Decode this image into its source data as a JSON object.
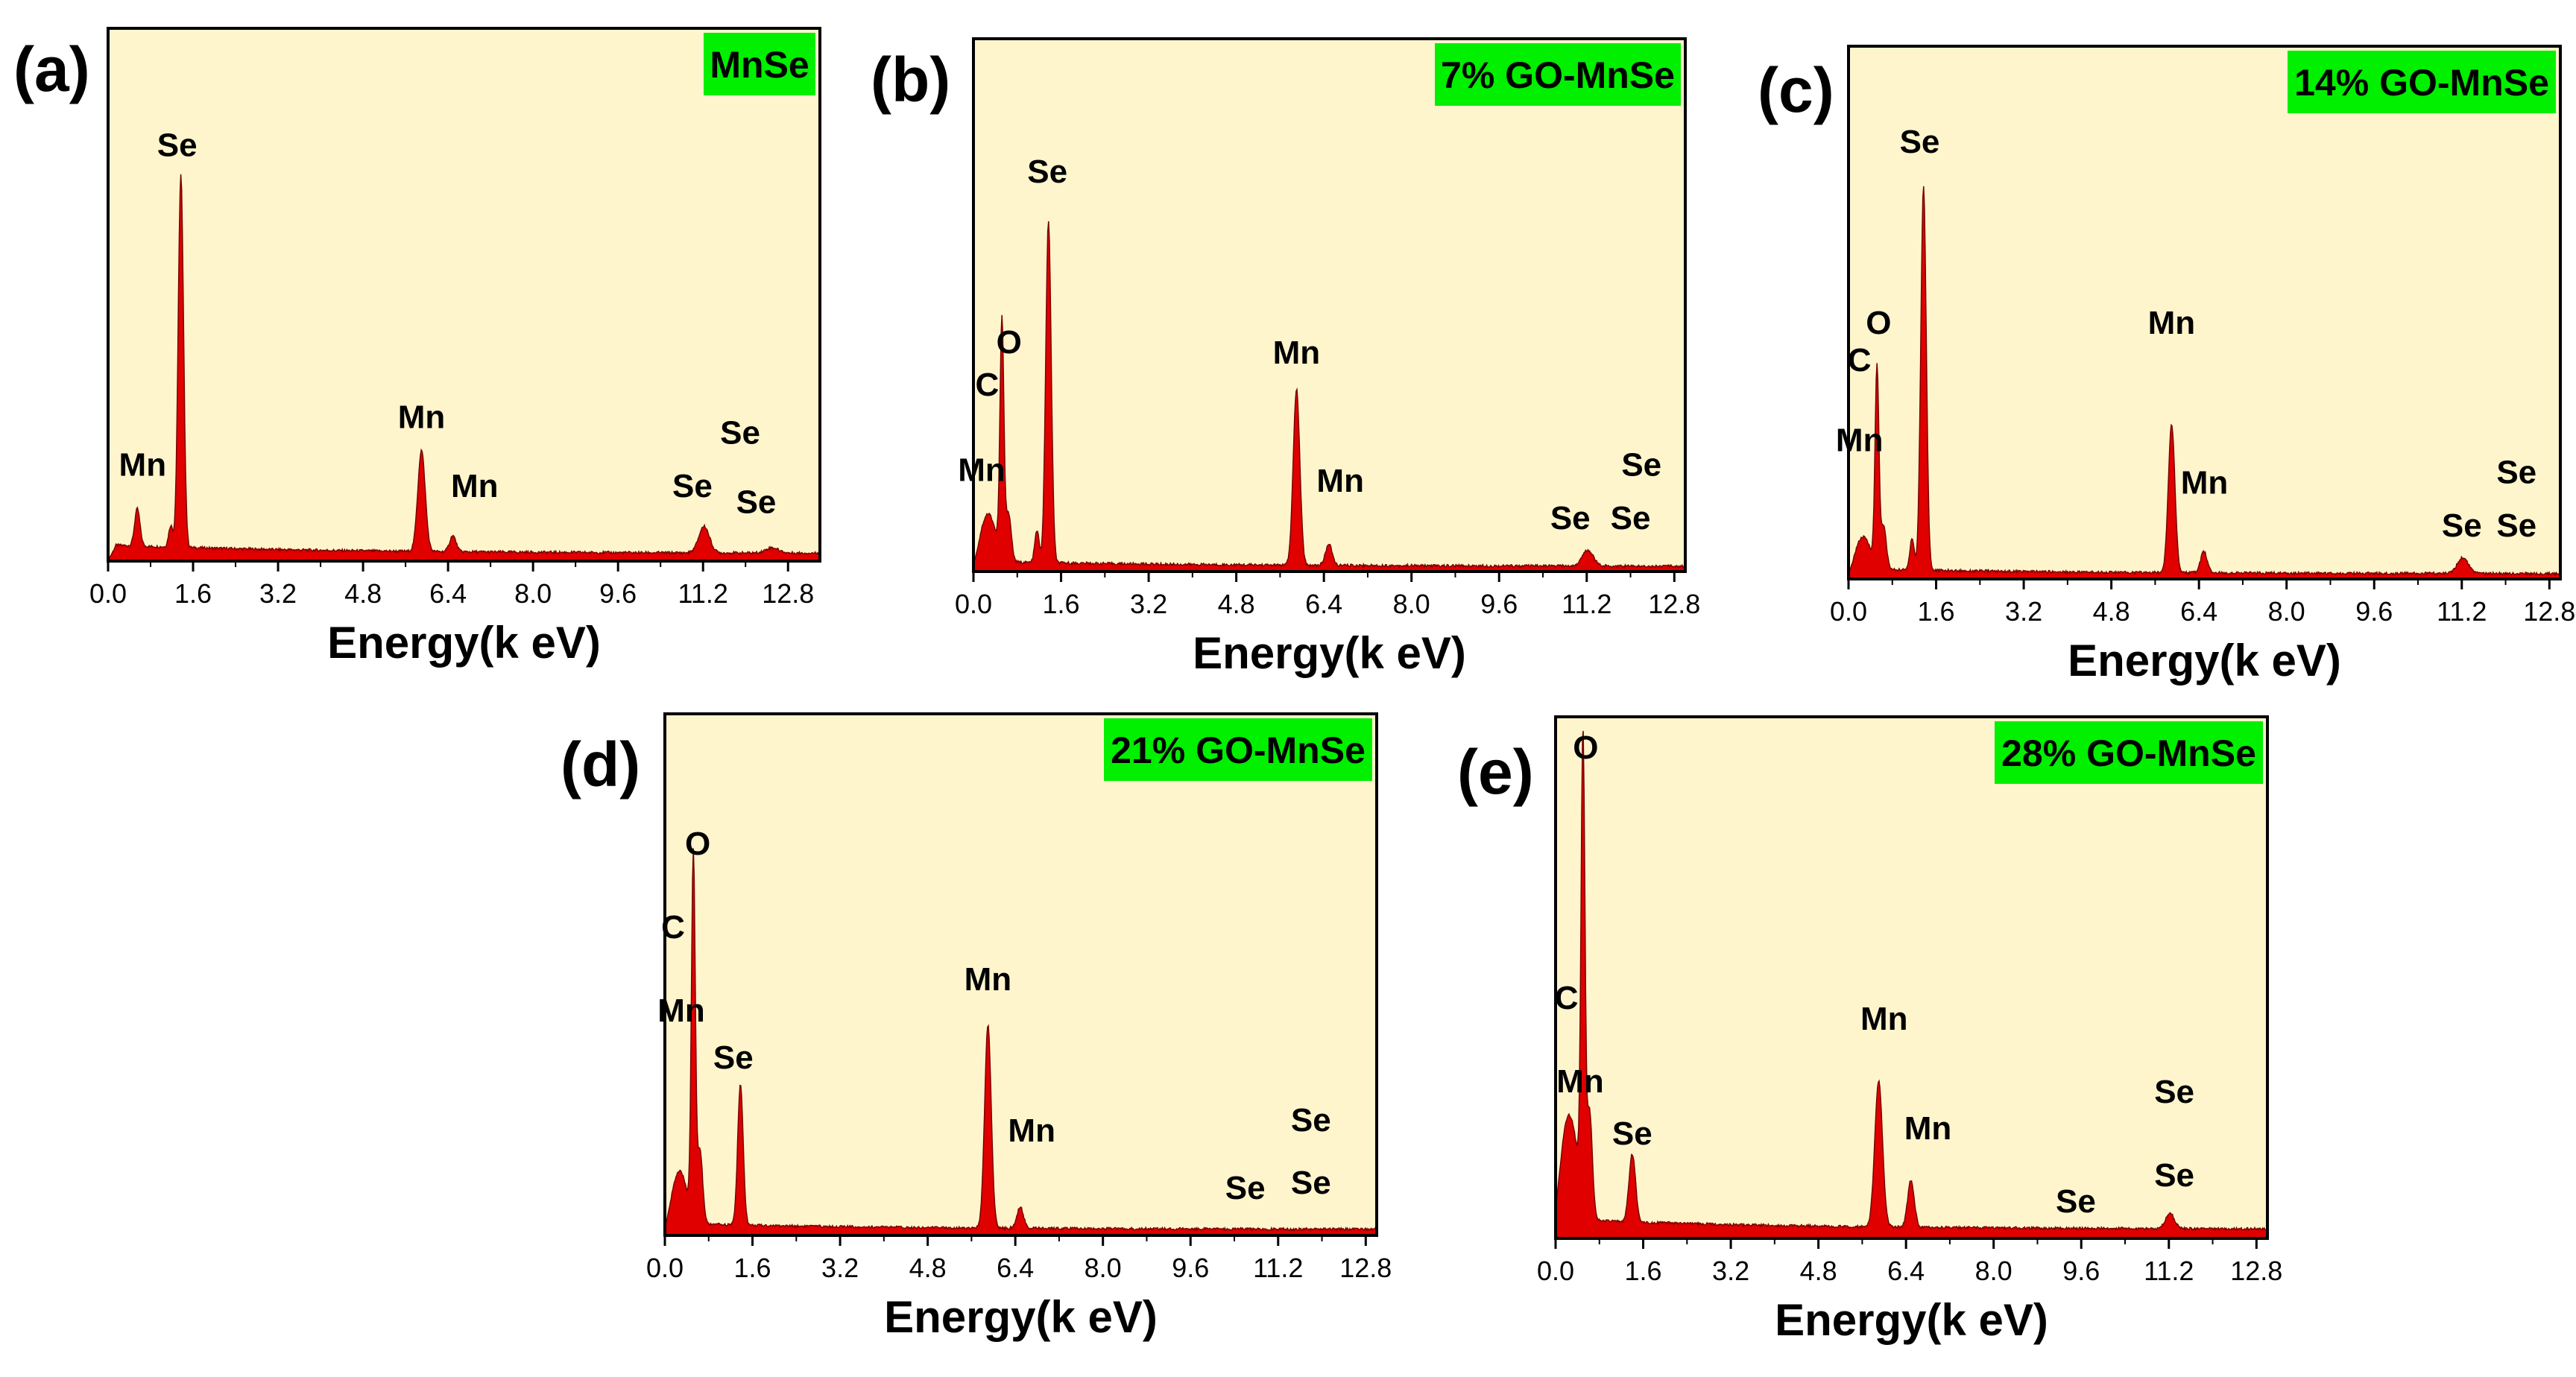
{
  "figure": {
    "x_label": "Energy(k eV)"
  },
  "colors": {
    "plot_bg": "#FFF5CC",
    "spectrum": "#E00000",
    "badge_bg": "#00F000",
    "axis": "#000000",
    "text": "#000000"
  },
  "chart_data": [
    {
      "type": "area",
      "panel_label": "(a)",
      "title": "MnSe",
      "xlabel": "Energy(k eV)",
      "ylabel": "",
      "xlim": [
        0,
        13.4
      ],
      "ylim": [
        0,
        100
      ],
      "x_ticks": [
        "0.0",
        "1.6",
        "3.2",
        "4.8",
        "6.4",
        "8.0",
        "9.6",
        "11.2",
        "12.8"
      ],
      "grid": false,
      "baseline": 2.0,
      "peaks": [
        {
          "x": 0.55,
          "h": 7,
          "w": 0.05
        },
        {
          "x": 1.18,
          "h": 4,
          "w": 0.04
        },
        {
          "x": 1.37,
          "h": 70,
          "w": 0.05
        },
        {
          "x": 5.9,
          "h": 19,
          "w": 0.07
        },
        {
          "x": 6.49,
          "h": 3,
          "w": 0.06
        },
        {
          "x": 11.22,
          "h": 5,
          "w": 0.1
        },
        {
          "x": 12.5,
          "h": 1,
          "w": 0.12
        }
      ],
      "annotations": [
        {
          "text": "Mn",
          "x": 0.65,
          "y": 16
        },
        {
          "text": "Se",
          "x": 1.3,
          "y": 76
        },
        {
          "text": "Mn",
          "x": 5.9,
          "y": 25
        },
        {
          "text": "Mn",
          "x": 6.9,
          "y": 12
        },
        {
          "text": "Se",
          "x": 11.0,
          "y": 12
        },
        {
          "text": "Se",
          "x": 11.9,
          "y": 22
        },
        {
          "text": "Se",
          "x": 12.2,
          "y": 9
        }
      ]
    },
    {
      "type": "area",
      "panel_label": "(b)",
      "title": "7% GO-MnSe",
      "xlabel": "Energy(k eV)",
      "ylabel": "",
      "xlim": [
        0,
        13.0
      ],
      "ylim": [
        0,
        100
      ],
      "x_ticks": [
        "0.0",
        "1.6",
        "3.2",
        "4.8",
        "6.4",
        "8.0",
        "9.6",
        "11.2",
        "12.8"
      ],
      "grid": false,
      "baseline": 1.2,
      "peaks": [
        {
          "x": 0.27,
          "h": 9,
          "w": 0.14
        },
        {
          "x": 0.52,
          "h": 44,
          "w": 0.035
        },
        {
          "x": 0.64,
          "h": 9,
          "w": 0.05
        },
        {
          "x": 1.16,
          "h": 6,
          "w": 0.04
        },
        {
          "x": 1.37,
          "h": 64,
          "w": 0.05
        },
        {
          "x": 5.9,
          "h": 33,
          "w": 0.06
        },
        {
          "x": 6.49,
          "h": 4,
          "w": 0.06
        },
        {
          "x": 11.22,
          "h": 3,
          "w": 0.1
        }
      ],
      "annotations": [
        {
          "text": "C",
          "x": 0.25,
          "y": 33
        },
        {
          "text": "O",
          "x": 0.65,
          "y": 41
        },
        {
          "text": "Mn",
          "x": 0.15,
          "y": 17
        },
        {
          "text": "Se",
          "x": 1.35,
          "y": 73
        },
        {
          "text": "Mn",
          "x": 5.9,
          "y": 39
        },
        {
          "text": "Mn",
          "x": 6.7,
          "y": 15
        },
        {
          "text": "Se",
          "x": 10.9,
          "y": 8
        },
        {
          "text": "Se",
          "x": 12.0,
          "y": 8
        },
        {
          "text": "Se",
          "x": 12.2,
          "y": 18
        }
      ]
    },
    {
      "type": "area",
      "panel_label": "(c)",
      "title": "14% GO-MnSe",
      "xlabel": "Energy(k eV)",
      "ylabel": "",
      "xlim": [
        0,
        13.0
      ],
      "ylim": [
        0,
        100
      ],
      "x_ticks": [
        "0.0",
        "1.6",
        "3.2",
        "4.8",
        "6.4",
        "8.0",
        "9.6",
        "11.2",
        "12.8"
      ],
      "grid": false,
      "baseline": 1.2,
      "peaks": [
        {
          "x": 0.27,
          "h": 6,
          "w": 0.14
        },
        {
          "x": 0.52,
          "h": 37,
          "w": 0.035
        },
        {
          "x": 0.64,
          "h": 8,
          "w": 0.05
        },
        {
          "x": 1.16,
          "h": 6,
          "w": 0.04
        },
        {
          "x": 1.37,
          "h": 72,
          "w": 0.05
        },
        {
          "x": 5.9,
          "h": 28,
          "w": 0.06
        },
        {
          "x": 6.49,
          "h": 4,
          "w": 0.06
        },
        {
          "x": 11.22,
          "h": 3,
          "w": 0.1
        }
      ],
      "annotations": [
        {
          "text": "C",
          "x": 0.2,
          "y": 39
        },
        {
          "text": "O",
          "x": 0.55,
          "y": 46
        },
        {
          "text": "Mn",
          "x": 0.2,
          "y": 24
        },
        {
          "text": "Se",
          "x": 1.3,
          "y": 80
        },
        {
          "text": "Mn",
          "x": 5.9,
          "y": 46
        },
        {
          "text": "Mn",
          "x": 6.5,
          "y": 16
        },
        {
          "text": "Se",
          "x": 11.2,
          "y": 8
        },
        {
          "text": "Se",
          "x": 12.2,
          "y": 8
        },
        {
          "text": "Se",
          "x": 12.2,
          "y": 18
        }
      ]
    },
    {
      "type": "area",
      "panel_label": "(d)",
      "title": "21% GO-MnSe",
      "xlabel": "Energy(k eV)",
      "ylabel": "",
      "xlim": [
        0,
        13.0
      ],
      "ylim": [
        0,
        100
      ],
      "x_ticks": [
        "0.0",
        "1.6",
        "3.2",
        "4.8",
        "6.4",
        "8.0",
        "9.6",
        "11.2",
        "12.8"
      ],
      "grid": false,
      "baseline": 1.5,
      "peaks": [
        {
          "x": 0.27,
          "h": 10,
          "w": 0.14
        },
        {
          "x": 0.52,
          "h": 69,
          "w": 0.035
        },
        {
          "x": 0.64,
          "h": 14,
          "w": 0.05
        },
        {
          "x": 1.38,
          "h": 27,
          "w": 0.05
        },
        {
          "x": 5.9,
          "h": 39,
          "w": 0.06
        },
        {
          "x": 6.49,
          "h": 4,
          "w": 0.06
        }
      ],
      "annotations": [
        {
          "text": "C",
          "x": 0.15,
          "y": 57
        },
        {
          "text": "O",
          "x": 0.6,
          "y": 73
        },
        {
          "text": "Mn",
          "x": 0.3,
          "y": 41
        },
        {
          "text": "Se",
          "x": 1.25,
          "y": 32
        },
        {
          "text": "Mn",
          "x": 5.9,
          "y": 47
        },
        {
          "text": "Mn",
          "x": 6.7,
          "y": 18
        },
        {
          "text": "Se",
          "x": 10.6,
          "y": 7
        },
        {
          "text": "Se",
          "x": 11.8,
          "y": 8
        },
        {
          "text": "Se",
          "x": 11.8,
          "y": 20
        }
      ]
    },
    {
      "type": "area",
      "panel_label": "(e)",
      "title": "28% GO-MnSe",
      "xlabel": "Energy(k eV)",
      "ylabel": "",
      "xlim": [
        0,
        13.0
      ],
      "ylim": [
        0,
        100
      ],
      "x_ticks": [
        "0.0",
        "1.6",
        "3.2",
        "4.8",
        "6.4",
        "8.0",
        "9.6",
        "11.2",
        "12.8"
      ],
      "grid": false,
      "baseline": 2.5,
      "peaks": [
        {
          "x": 0.25,
          "h": 20,
          "w": 0.16
        },
        {
          "x": 0.5,
          "h": 88,
          "w": 0.035
        },
        {
          "x": 0.62,
          "h": 20,
          "w": 0.05
        },
        {
          "x": 1.4,
          "h": 13,
          "w": 0.06
        },
        {
          "x": 5.9,
          "h": 28,
          "w": 0.07
        },
        {
          "x": 6.49,
          "h": 9,
          "w": 0.06
        },
        {
          "x": 11.22,
          "h": 3,
          "w": 0.08
        }
      ],
      "annotations": [
        {
          "text": "C",
          "x": 0.2,
          "y": 44
        },
        {
          "text": "O",
          "x": 0.55,
          "y": 92
        },
        {
          "text": "Mn",
          "x": 0.45,
          "y": 28
        },
        {
          "text": "Se",
          "x": 1.4,
          "y": 18
        },
        {
          "text": "Mn",
          "x": 6.0,
          "y": 40
        },
        {
          "text": "Mn",
          "x": 6.8,
          "y": 19
        },
        {
          "text": "Se",
          "x": 9.5,
          "y": 5
        },
        {
          "text": "Se",
          "x": 11.3,
          "y": 10
        },
        {
          "text": "Se",
          "x": 11.3,
          "y": 26
        }
      ]
    }
  ]
}
